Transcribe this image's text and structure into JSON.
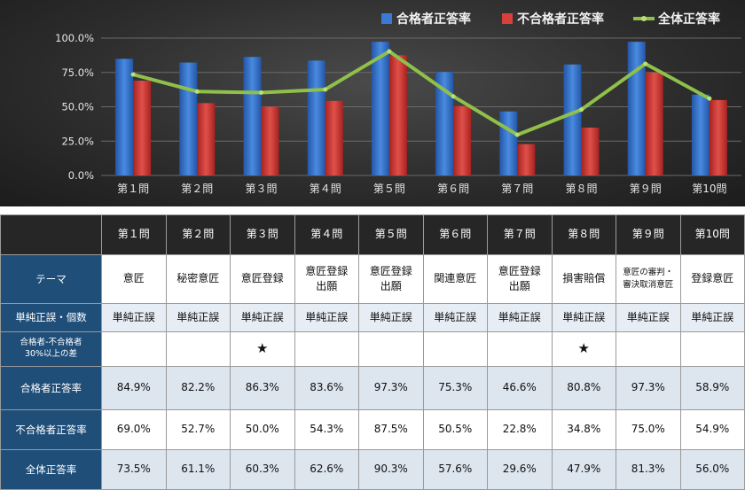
{
  "chart_data": {
    "type": "bar",
    "categories": [
      "第１問",
      "第２問",
      "第３問",
      "第４問",
      "第５問",
      "第６問",
      "第７問",
      "第８問",
      "第９問",
      "第10問"
    ],
    "series": [
      {
        "name": "合格者正答率",
        "kind": "bar",
        "color": "#2f6dc6",
        "values": [
          84.9,
          82.2,
          86.3,
          83.6,
          97.3,
          75.3,
          46.6,
          80.8,
          97.3,
          58.9
        ]
      },
      {
        "name": "不合格者正答率",
        "kind": "bar",
        "color": "#d23a36",
        "values": [
          69.0,
          52.7,
          50.0,
          54.3,
          87.5,
          50.5,
          22.8,
          34.8,
          75.0,
          54.9
        ]
      },
      {
        "name": "全体正答率",
        "kind": "line",
        "color": "#8fc04a",
        "values": [
          73.5,
          61.1,
          60.3,
          62.6,
          90.3,
          57.6,
          29.6,
          47.9,
          81.3,
          56.0
        ]
      }
    ],
    "yticks": [
      "0.0%",
      "25.0%",
      "50.0%",
      "75.0%",
      "100.0%"
    ],
    "ylim": [
      0,
      100
    ],
    "legend_position": "top-right",
    "grid": true
  },
  "table": {
    "columns": [
      "第１問",
      "第２問",
      "第３問",
      "第４問",
      "第５問",
      "第６問",
      "第７問",
      "第８問",
      "第９問",
      "第10問"
    ],
    "rows": {
      "theme": {
        "label": "テーマ",
        "cells": [
          [
            "意匠"
          ],
          [
            "秘密意匠"
          ],
          [
            "意匠登録"
          ],
          [
            "意匠登録",
            "出願"
          ],
          [
            "意匠登録",
            "出願"
          ],
          [
            "関連意匠"
          ],
          [
            "意匠登録",
            "出願"
          ],
          [
            "損害賠償"
          ],
          [
            "意匠の審判・",
            "審決取消意匠"
          ],
          [
            "登録意匠"
          ]
        ]
      },
      "type": {
        "label": "単純正誤・個数",
        "cells": [
          "単純正誤",
          "単純正誤",
          "単純正誤",
          "単純正誤",
          "単純正誤",
          "単純正誤",
          "単純正誤",
          "単純正誤",
          "単純正誤",
          "単純正誤"
        ]
      },
      "flag": {
        "label": [
          "合格者-不合格者",
          "30%以上の差"
        ],
        "cells": [
          "",
          "",
          "★",
          "",
          "",
          "",
          "",
          "★",
          "",
          ""
        ]
      },
      "pass": {
        "label": "合格者正答率",
        "cells": [
          "84.9%",
          "82.2%",
          "86.3%",
          "83.6%",
          "97.3%",
          "75.3%",
          "46.6%",
          "80.8%",
          "97.3%",
          "58.9%"
        ]
      },
      "fail": {
        "label": "不合格者正答率",
        "cells": [
          "69.0%",
          "52.7%",
          "50.0%",
          "54.3%",
          "87.5%",
          "50.5%",
          "22.8%",
          "34.8%",
          "75.0%",
          "54.9%"
        ]
      },
      "all": {
        "label": "全体正答率",
        "cells": [
          "73.5%",
          "61.1%",
          "60.3%",
          "62.6%",
          "90.3%",
          "57.6%",
          "29.6%",
          "47.9%",
          "81.3%",
          "56.0%"
        ]
      }
    }
  }
}
